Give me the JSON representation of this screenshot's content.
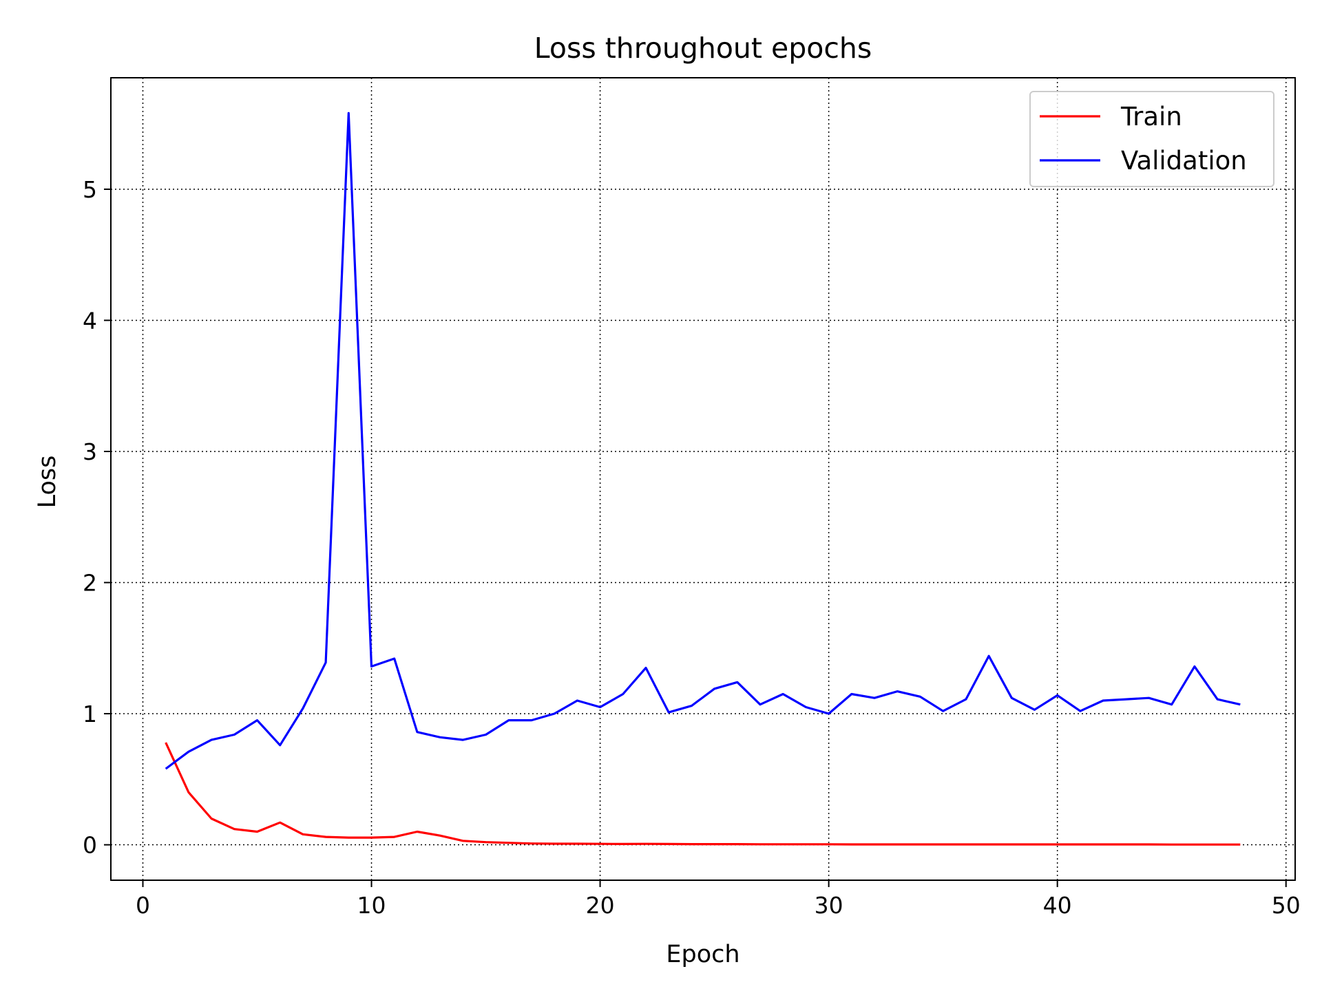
{
  "chart_data": {
    "type": "line",
    "title": "Loss throughout epochs",
    "xlabel": "Epoch",
    "ylabel": "Loss",
    "xlim": [
      -1.4,
      50.4
    ],
    "ylim": [
      -0.27,
      5.85
    ],
    "xticks": [
      0,
      10,
      20,
      30,
      40,
      50
    ],
    "yticks": [
      0,
      1,
      2,
      3,
      4,
      5
    ],
    "grid": true,
    "legend_position": "top-right",
    "x": [
      1,
      2,
      3,
      4,
      5,
      6,
      7,
      8,
      9,
      10,
      11,
      12,
      13,
      14,
      15,
      16,
      17,
      18,
      19,
      20,
      21,
      22,
      23,
      24,
      25,
      26,
      27,
      28,
      29,
      30,
      31,
      32,
      33,
      34,
      35,
      36,
      37,
      38,
      39,
      40,
      41,
      42,
      43,
      44,
      45,
      46,
      47,
      48
    ],
    "series": [
      {
        "name": "Train",
        "color": "#ff0000",
        "values": [
          0.78,
          0.4,
          0.2,
          0.12,
          0.1,
          0.17,
          0.08,
          0.06,
          0.055,
          0.055,
          0.06,
          0.1,
          0.07,
          0.03,
          0.02,
          0.015,
          0.01,
          0.008,
          0.008,
          0.007,
          0.006,
          0.007,
          0.006,
          0.005,
          0.005,
          0.005,
          0.004,
          0.004,
          0.004,
          0.004,
          0.003,
          0.003,
          0.003,
          0.003,
          0.003,
          0.003,
          0.003,
          0.003,
          0.003,
          0.003,
          0.003,
          0.003,
          0.003,
          0.003,
          0.002,
          0.002,
          0.002,
          0.002
        ]
      },
      {
        "name": "Validation",
        "color": "#0000ff",
        "values": [
          0.58,
          0.71,
          0.8,
          0.84,
          0.95,
          0.76,
          1.04,
          1.39,
          5.58,
          1.36,
          1.42,
          0.86,
          0.82,
          0.8,
          0.84,
          0.95,
          0.95,
          1.0,
          1.1,
          1.05,
          1.15,
          1.35,
          1.01,
          1.06,
          1.19,
          1.24,
          1.07,
          1.15,
          1.05,
          1.0,
          1.15,
          1.12,
          1.17,
          1.13,
          1.02,
          1.11,
          1.44,
          1.12,
          1.03,
          1.14,
          1.02,
          1.1,
          1.11,
          1.12,
          1.07,
          1.36,
          1.11,
          1.07
        ]
      }
    ]
  }
}
